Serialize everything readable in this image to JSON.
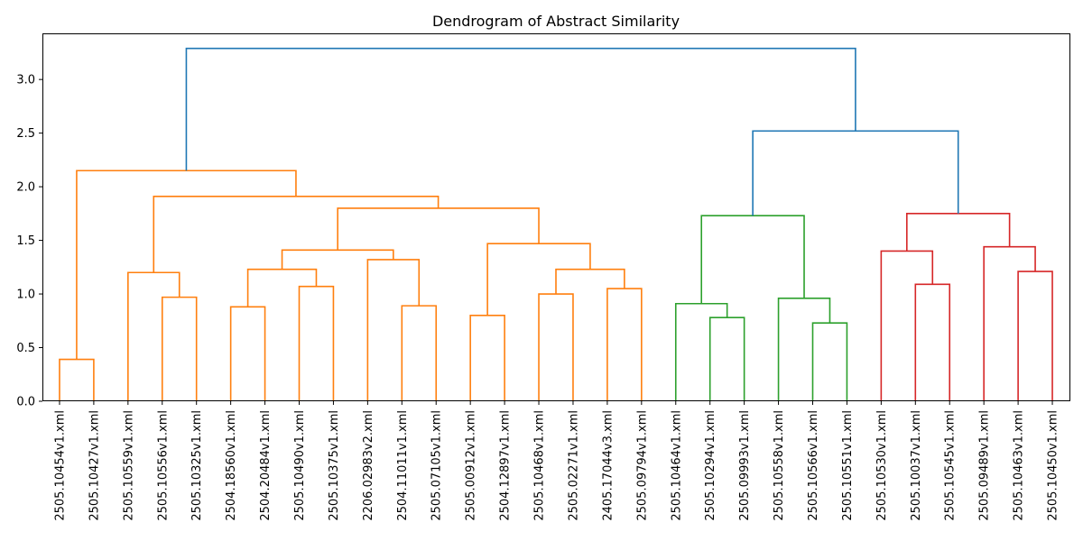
{
  "chart_data": {
    "type": "dendrogram",
    "title": "Dendrogram of Abstract Similarity",
    "xlabel": "",
    "ylabel": "",
    "ylim": [
      0,
      3.43
    ],
    "yticks": [
      "0.0",
      "0.5",
      "1.0",
      "1.5",
      "2.0",
      "2.5",
      "3.0"
    ],
    "grid": false,
    "leaves": [
      "2505.10454v1.xml",
      "2505.10427v1.xml",
      "2505.10559v1.xml",
      "2505.10556v1.xml",
      "2505.10325v1.xml",
      "2504.18560v1.xml",
      "2504.20484v1.xml",
      "2505.10490v1.xml",
      "2505.10375v1.xml",
      "2206.02983v2.xml",
      "2504.11011v1.xml",
      "2505.07105v1.xml",
      "2505.00912v1.xml",
      "2504.12897v1.xml",
      "2505.10468v1.xml",
      "2505.02271v1.xml",
      "2405.17044v3.xml",
      "2505.09794v1.xml",
      "2505.10464v1.xml",
      "2505.10294v1.xml",
      "2505.09993v1.xml",
      "2505.10558v1.xml",
      "2505.10566v1.xml",
      "2505.10551v1.xml",
      "2505.10530v1.xml",
      "2505.10037v1.xml",
      "2505.10545v1.xml",
      "2505.09489v1.xml",
      "2505.10463v1.xml",
      "2505.10450v1.xml"
    ],
    "colors": {
      "C1": "#ff7f0e",
      "C2": "#2ca02c",
      "C3": "#d62728",
      "C0": "#1f77b4"
    },
    "merges": [
      {
        "left": 0,
        "right": 1,
        "height": 0.39,
        "color": "C1"
      },
      {
        "left": 3,
        "right": 4,
        "height": 0.97,
        "color": "C1"
      },
      {
        "left": 2,
        "right": 3.5,
        "height": 1.2,
        "color": "C1"
      },
      {
        "left": 5,
        "right": 6,
        "height": 0.88,
        "color": "C1"
      },
      {
        "left": 7,
        "right": 8,
        "height": 1.07,
        "color": "C1"
      },
      {
        "left": 5.5,
        "right": 7.5,
        "height": 1.23,
        "color": "C1"
      },
      {
        "left": 10,
        "right": 11,
        "height": 0.89,
        "color": "C1"
      },
      {
        "left": 9,
        "right": 10.5,
        "height": 1.32,
        "color": "C1"
      },
      {
        "left": 6.5,
        "right": 9.75,
        "height": 1.41,
        "color": "C1"
      },
      {
        "left": 12,
        "right": 13,
        "height": 0.8,
        "color": "C1"
      },
      {
        "left": 14,
        "right": 15,
        "height": 1.0,
        "color": "C1"
      },
      {
        "left": 16,
        "right": 17,
        "height": 1.05,
        "color": "C1"
      },
      {
        "left": 14.5,
        "right": 16.5,
        "height": 1.23,
        "color": "C1"
      },
      {
        "left": 12.5,
        "right": 15.5,
        "height": 1.47,
        "color": "C1"
      },
      {
        "left": 8.125,
        "right": 14,
        "height": 1.8,
        "color": "C1"
      },
      {
        "left": 2.75,
        "right": 11.0625,
        "height": 1.91,
        "color": "C1"
      },
      {
        "left": 0.5,
        "right": 6.90625,
        "height": 2.15,
        "color": "C1"
      },
      {
        "left": 19,
        "right": 20,
        "height": 0.78,
        "color": "C2"
      },
      {
        "left": 18,
        "right": 19.5,
        "height": 0.91,
        "color": "C2"
      },
      {
        "left": 22,
        "right": 23,
        "height": 0.73,
        "color": "C2"
      },
      {
        "left": 21,
        "right": 22.5,
        "height": 0.96,
        "color": "C2"
      },
      {
        "left": 18.75,
        "right": 21.75,
        "height": 1.73,
        "color": "C2"
      },
      {
        "left": 25,
        "right": 26,
        "height": 1.09,
        "color": "C3"
      },
      {
        "left": 24,
        "right": 25.5,
        "height": 1.4,
        "color": "C3"
      },
      {
        "left": 28,
        "right": 29,
        "height": 1.21,
        "color": "C3"
      },
      {
        "left": 27,
        "right": 28.5,
        "height": 1.44,
        "color": "C3"
      },
      {
        "left": 24.75,
        "right": 27.75,
        "height": 1.75,
        "color": "C3"
      },
      {
        "left": 20.25,
        "right": 26.25,
        "height": 2.52,
        "color": "C0"
      },
      {
        "left": 3.703125,
        "right": 23.25,
        "height": 3.29,
        "color": "C0"
      }
    ]
  }
}
